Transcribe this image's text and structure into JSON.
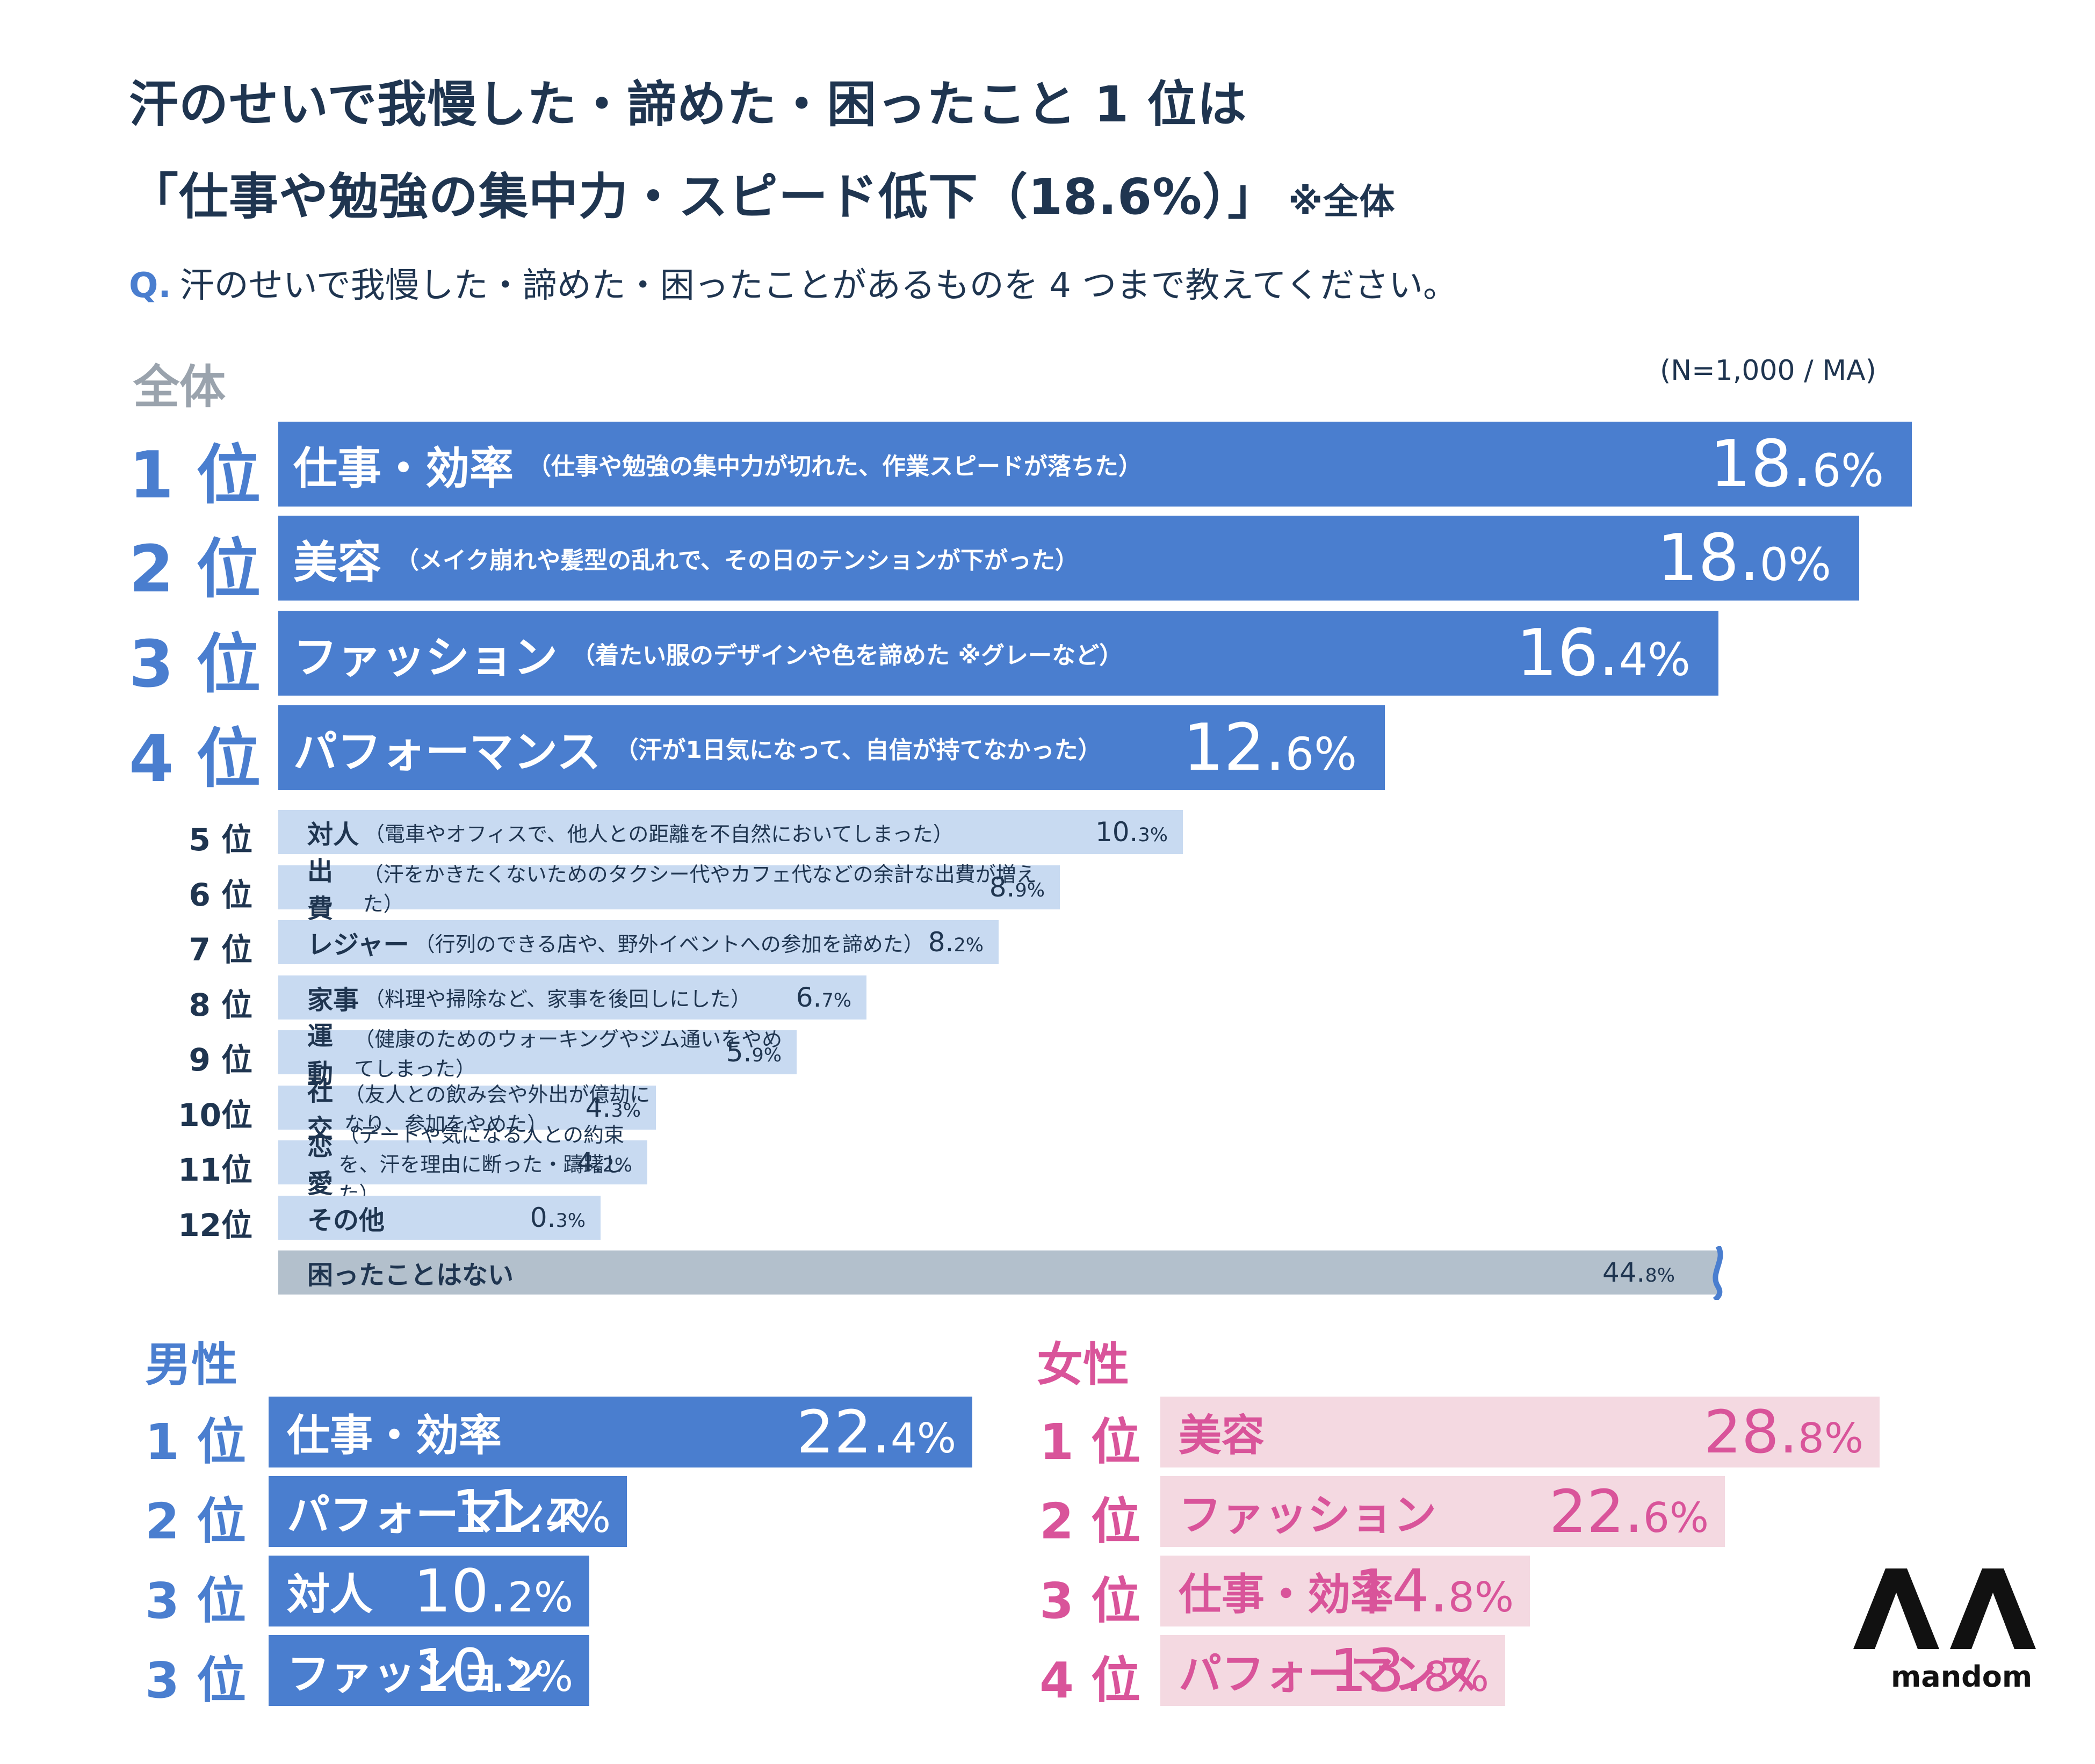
{
  "title": {
    "line1": "汗のせいで我慢した・諦めた・困ったこと 1 位は",
    "line2": "「仕事や勉強の集中力・スピード低下（18.6%）」",
    "note": "※全体"
  },
  "question": {
    "prefix": "Q.",
    "text": "汗のせいで我慢した・諦めた・困ったことがあるものを 4 つまで教えてください。"
  },
  "overall": {
    "label": "全体",
    "sample_note": "(N=1,000 / MA)"
  },
  "chart_data": [
    {
      "type": "bar",
      "orientation": "horizontal",
      "title": "全体",
      "unit": "%",
      "categories": [
        {
          "rank": "1 位",
          "label": "仕事・効率",
          "detail": "（仕事や勉強の集中力が切れた、作業スピードが落ちた）",
          "value": 18.6,
          "pct_int": "18.",
          "pct_dec": "6%"
        },
        {
          "rank": "2 位",
          "label": "美容",
          "detail": "（メイク崩れや髪型の乱れで、その日のテンションが下がった）",
          "value": 18.0,
          "pct_int": "18.",
          "pct_dec": "0%"
        },
        {
          "rank": "3 位",
          "label": "ファッション",
          "detail": "（着たい服のデザインや色を諦めた ※グレーなど）",
          "value": 16.4,
          "pct_int": "16.",
          "pct_dec": "4%"
        },
        {
          "rank": "4 位",
          "label": "パフォーマンス",
          "detail": "（汗が1日気になって、自信が持てなかった）",
          "value": 12.6,
          "pct_int": "12.",
          "pct_dec": "6%"
        },
        {
          "rank": "5 位",
          "label": "対人",
          "detail": "（電車やオフィスで、他人との距離を不自然においてしまった）",
          "value": 10.3,
          "pct_int": "10.",
          "pct_dec": "3%"
        },
        {
          "rank": "6 位",
          "label": "出費",
          "detail": "（汗をかきたくないためのタクシー代やカフェ代などの余計な出費が増えた）",
          "value": 8.9,
          "pct_int": "8.",
          "pct_dec": "9%"
        },
        {
          "rank": "7 位",
          "label": "レジャー",
          "detail": "（行列のできる店や、野外イベントへの参加を諦めた）",
          "value": 8.2,
          "pct_int": "8.",
          "pct_dec": "2%"
        },
        {
          "rank": "8 位",
          "label": "家事",
          "detail": "（料理や掃除など、家事を後回しにした）",
          "value": 6.7,
          "pct_int": "6.",
          "pct_dec": "7%"
        },
        {
          "rank": "9 位",
          "label": "運動",
          "detail": "（健康のためのウォーキングやジム通いをやめてしまった）",
          "value": 5.9,
          "pct_int": "5.",
          "pct_dec": "9%"
        },
        {
          "rank": "10位",
          "label": "社交",
          "detail": "（友人との飲み会や外出が億劫になり、参加をやめた）",
          "value": 4.3,
          "pct_int": "4.",
          "pct_dec": "3%"
        },
        {
          "rank": "11位",
          "label": "恋愛",
          "detail": "（デートや気になる人との約束を、汗を理由に断った・躊躇した）",
          "value": 4.2,
          "pct_int": "4.",
          "pct_dec": "2%"
        },
        {
          "rank": "12位",
          "label": "その他",
          "detail": "",
          "value": 0.3,
          "pct_int": "0.",
          "pct_dec": "3%"
        },
        {
          "rank": "",
          "label": "困ったことはない",
          "detail": "",
          "value": 44.8,
          "pct_int": "44.",
          "pct_dec": "8%",
          "axis_break": true
        }
      ]
    },
    {
      "type": "bar",
      "orientation": "horizontal",
      "title": "男性",
      "unit": "%",
      "categories": [
        {
          "rank": "1 位",
          "label": "仕事・効率",
          "value": 22.4,
          "pct_int": "22.",
          "pct_dec": "4%"
        },
        {
          "rank": "2 位",
          "label": "パフォーマンス",
          "value": 11.4,
          "pct_int": "11.",
          "pct_dec": "4%"
        },
        {
          "rank": "3 位",
          "label": "対人",
          "value": 10.2,
          "pct_int": "10.",
          "pct_dec": "2%"
        },
        {
          "rank": "3 位",
          "label": "ファッション",
          "value": 10.2,
          "pct_int": "10.",
          "pct_dec": "2%"
        }
      ]
    },
    {
      "type": "bar",
      "orientation": "horizontal",
      "title": "女性",
      "unit": "%",
      "categories": [
        {
          "rank": "1 位",
          "label": "美容",
          "value": 28.8,
          "pct_int": "28.",
          "pct_dec": "8%"
        },
        {
          "rank": "2 位",
          "label": "ファッション",
          "value": 22.6,
          "pct_int": "22.",
          "pct_dec": "6%"
        },
        {
          "rank": "3 位",
          "label": "仕事・効率",
          "value": 14.8,
          "pct_int": "14.",
          "pct_dec": "8%"
        },
        {
          "rank": "4 位",
          "label": "パフォーマンス",
          "value": 13.8,
          "pct_int": "13.",
          "pct_dec": "8%"
        }
      ]
    }
  ],
  "colors": {
    "primary_blue": "#4a7ecf",
    "light_blue": "#c8daf1",
    "gray_bar": "#b3c0cc",
    "navy_text": "#1f3550",
    "pink_bar": "#f4d9e1",
    "pink_text": "#d9549a"
  },
  "logo": {
    "icon": "mandom-logo-icon",
    "word": "mandom"
  }
}
